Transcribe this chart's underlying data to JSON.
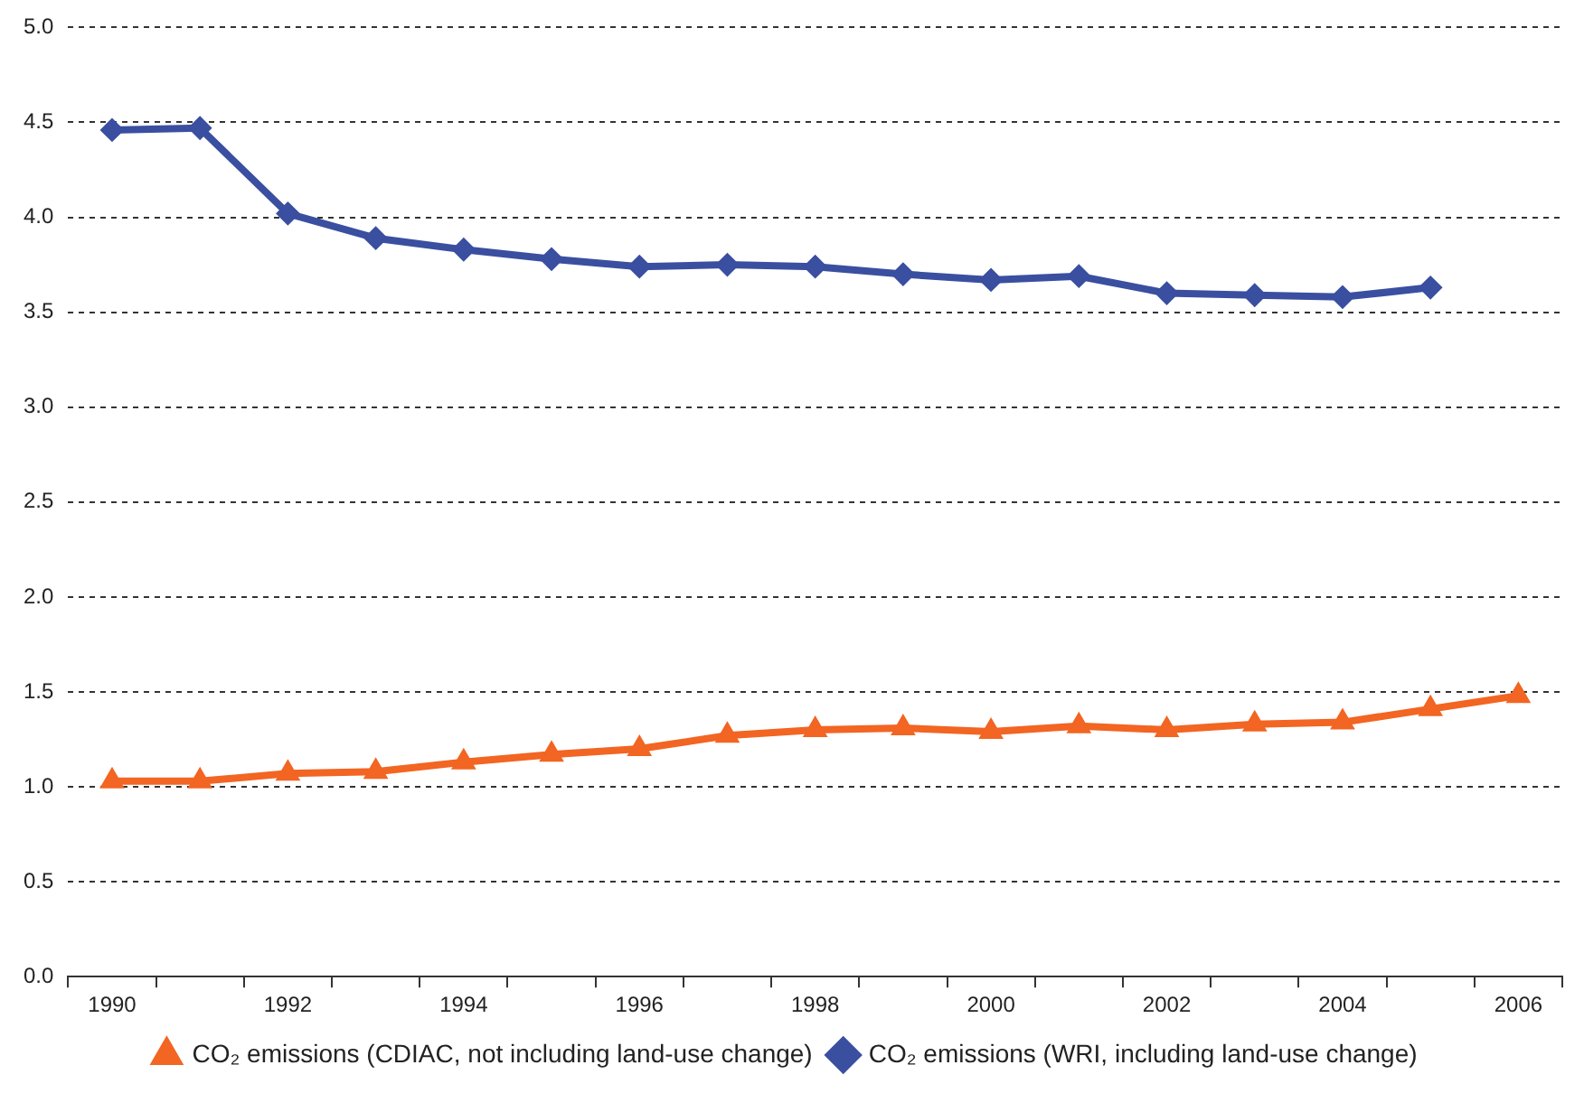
{
  "chart_data": {
    "type": "line",
    "categories": [
      "1990",
      null,
      "1992",
      null,
      "1994",
      null,
      "1996",
      null,
      "1998",
      null,
      "2000",
      null,
      "2002",
      null,
      "2004",
      null,
      "2006"
    ],
    "series": [
      {
        "name": "CO₂ emissions (CDIAC, not including land-use change)",
        "color": "#f26522",
        "marker": "triangle",
        "values": [
          1.03,
          1.03,
          1.07,
          1.08,
          1.13,
          1.17,
          1.2,
          1.27,
          1.3,
          1.31,
          1.29,
          1.32,
          1.3,
          1.33,
          1.34,
          1.41,
          1.48
        ]
      },
      {
        "name": "CO₂ emissions (WRI, including land-use change)",
        "color": "#3a4fa0",
        "marker": "diamond",
        "values": [
          4.46,
          4.47,
          4.02,
          3.89,
          3.83,
          3.78,
          3.74,
          3.75,
          3.74,
          3.7,
          3.67,
          3.69,
          3.6,
          3.59,
          3.58,
          3.63,
          null
        ]
      }
    ],
    "ylim": [
      0,
      5
    ],
    "yticks": [
      {
        "value": 0,
        "label": "0.0"
      },
      {
        "value": 0.5,
        "label": "0.5"
      },
      {
        "value": 1,
        "label": "1.0"
      },
      {
        "value": 1.5,
        "label": "1.5"
      },
      {
        "value": 2,
        "label": "2.0"
      },
      {
        "value": 2.5,
        "label": "2.5"
      },
      {
        "value": 3,
        "label": "3.0"
      },
      {
        "value": 3.5,
        "label": "3.5"
      },
      {
        "value": 4,
        "label": "4.0"
      },
      {
        "value": 4.5,
        "label": "4.5"
      },
      {
        "value": 5,
        "label": "5.0"
      }
    ],
    "grid": "y",
    "legend": "bottom",
    "line_style": "solid"
  }
}
